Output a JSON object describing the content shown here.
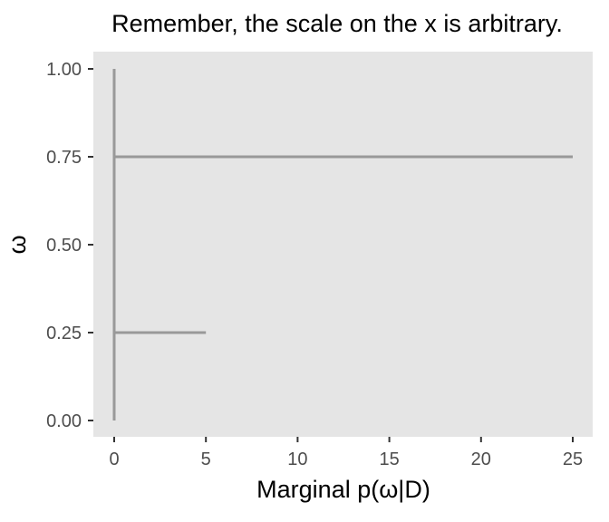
{
  "chart_data": {
    "type": "line",
    "title": "Remember, the scale on the x is arbitrary.",
    "xlabel": "Marginal p(ω|D)",
    "ylabel": "ω",
    "xlim": [
      0,
      25
    ],
    "ylim": [
      0,
      1
    ],
    "x_ticks": [
      0,
      5,
      10,
      15,
      20,
      25
    ],
    "x_tick_labels": [
      "0",
      "5",
      "10",
      "15",
      "20",
      "25"
    ],
    "y_ticks": [
      0,
      0.25,
      0.5,
      0.75,
      1
    ],
    "y_tick_labels": [
      "0.00",
      "0.25",
      "0.50",
      "0.75",
      "1.00"
    ],
    "grid": false,
    "background_color": "#e5e5e5",
    "line_color": "#999999",
    "segments": [
      {
        "x": [
          0,
          0
        ],
        "y": [
          0,
          1
        ]
      },
      {
        "x": [
          0,
          25
        ],
        "y": [
          0.75,
          0.75
        ]
      },
      {
        "x": [
          0,
          5
        ],
        "y": [
          0.25,
          0.25
        ]
      }
    ]
  }
}
